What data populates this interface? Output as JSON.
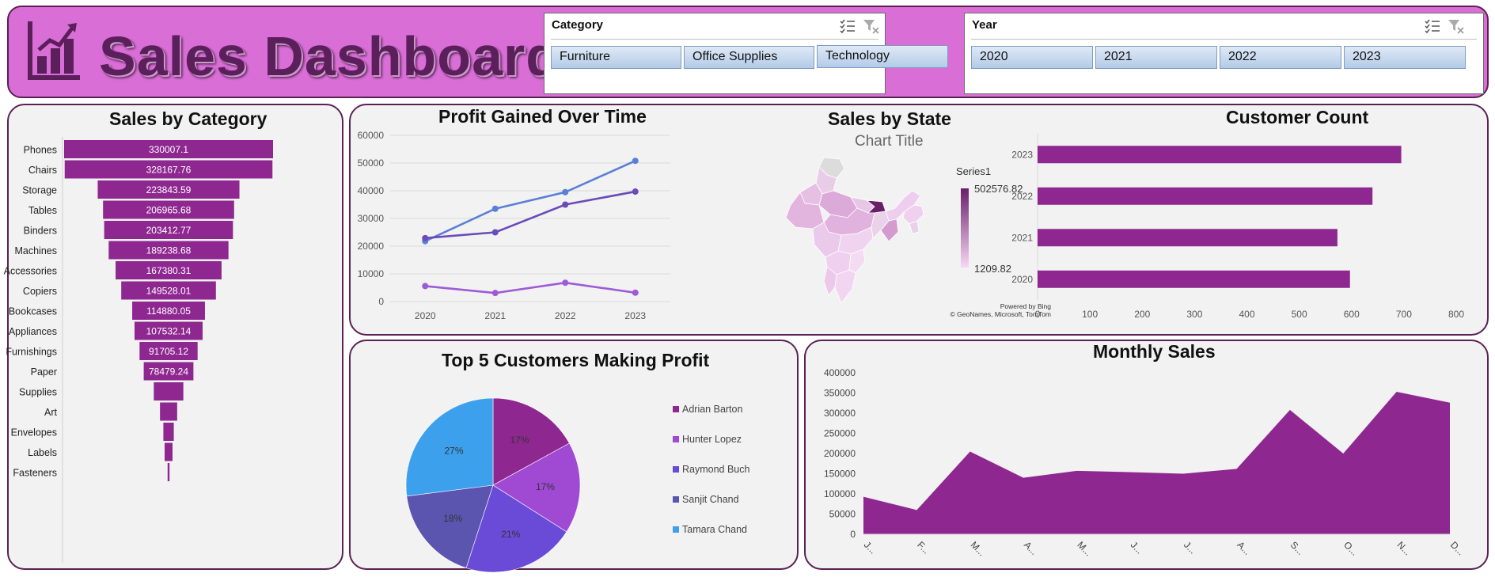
{
  "header": {
    "title": "Sales Dashboard",
    "icon": "bar-chart-icon",
    "colors": {
      "bg": "#d96fd6",
      "title": "#5b1f5c",
      "accent": "#8e2890"
    }
  },
  "slicers": {
    "category": {
      "label": "Category",
      "items": [
        "Furniture",
        "Office Supplies",
        "Technology"
      ],
      "icons": [
        "multi-select-icon",
        "clear-filter-icon"
      ]
    },
    "year": {
      "label": "Year",
      "items": [
        "2020",
        "2021",
        "2022",
        "2023"
      ],
      "icons": [
        "multi-select-icon",
        "clear-filter-icon"
      ]
    }
  },
  "panels": {
    "sales_by_category": "Sales by Category",
    "profit_over_time": "Profit Gained Over Time",
    "sales_by_state": "Sales by State",
    "customer_count": "Customer Count",
    "top_customers": "Top 5 Customers Making Profit",
    "monthly_sales": "Monthly Sales"
  },
  "map": {
    "chart_title": "Chart Title",
    "legend_title": "Series1",
    "legend_max": "502576.82",
    "legend_min": "1209.82",
    "credit_line1": "Powered by Bing",
    "credit_line2": "© GeoNames, Microsoft, TomTom"
  },
  "chart_data": [
    {
      "id": "sales_by_category",
      "type": "bar",
      "orientation": "horizontal-funnel",
      "title": "Sales by Category",
      "categories": [
        "Phones",
        "Chairs",
        "Storage",
        "Tables",
        "Binders",
        "Machines",
        "Accessories",
        "Copiers",
        "Bookcases",
        "Appliances",
        "Furnishings",
        "Paper",
        "Supplies",
        "Art",
        "Envelopes",
        "Labels",
        "Fasteners"
      ],
      "values": [
        330007.1,
        328167.76,
        223843.59,
        206965.68,
        203412.77,
        189238.68,
        167380.31,
        149528.01,
        114880.05,
        107532.14,
        91705.12,
        78479.24,
        46673.5,
        27118.8,
        16476.4,
        12486.3,
        3024.3
      ],
      "data_labels": [
        "330007.1",
        "328167.76",
        "223843.59",
        "206965.68",
        "203412.77",
        "189238.68",
        "167380.31",
        "149528.01",
        "114880.05",
        "107532.14",
        "91705.12",
        "78479.24",
        "",
        "",
        "",
        "",
        ""
      ],
      "color": "#8e2890"
    },
    {
      "id": "profit_over_time",
      "type": "line",
      "title": "Profit Gained Over Time",
      "categories": [
        "2020",
        "2021",
        "2022",
        "2023"
      ],
      "ylim": [
        0,
        60000
      ],
      "yticks": [
        0,
        10000,
        20000,
        30000,
        40000,
        50000,
        60000
      ],
      "grid": true,
      "series": [
        {
          "values": [
            21800,
            33500,
            39500,
            50800
          ],
          "color": "#5b7fd6"
        },
        {
          "values": [
            22900,
            25000,
            35000,
            39700
          ],
          "color": "#6a4bb8"
        },
        {
          "values": [
            5600,
            3100,
            6800,
            3200
          ],
          "color": "#9d5bd8"
        }
      ]
    },
    {
      "id": "customer_count",
      "type": "bar",
      "orientation": "horizontal",
      "title": "Customer Count",
      "categories": [
        "2023",
        "2022",
        "2021",
        "2020"
      ],
      "values": [
        695,
        640,
        573,
        597
      ],
      "xlim": [
        0,
        800
      ],
      "xticks": [
        0,
        100,
        200,
        300,
        400,
        500,
        600,
        700,
        800
      ],
      "color": "#8e2890"
    },
    {
      "id": "top_customers",
      "type": "pie",
      "title": "Top 5 Customers Making Profit",
      "labels": [
        "Adrian Barton",
        "Hunter Lopez",
        "Raymond Buch",
        "Sanjit Chand",
        "Tamara Chand"
      ],
      "values": [
        17,
        17,
        21,
        18,
        27
      ],
      "data_labels": [
        "17%",
        "17%",
        "21%",
        "18%",
        "27%"
      ],
      "colors": [
        "#8e2890",
        "#a04ad4",
        "#6a4bd8",
        "#5b55b0",
        "#3da0ec"
      ],
      "legend": "right"
    },
    {
      "id": "monthly_sales",
      "type": "area",
      "title": "Monthly Sales",
      "categories": [
        "J...",
        "F...",
        "M...",
        "A...",
        "M...",
        "J...",
        "J...",
        "A...",
        "S...",
        "O...",
        "N...",
        "D..."
      ],
      "values": [
        93000,
        60000,
        205000,
        140000,
        157000,
        154000,
        150000,
        162000,
        308000,
        200000,
        353000,
        326000
      ],
      "ylim": [
        0,
        400000
      ],
      "yticks": [
        0,
        50000,
        100000,
        150000,
        200000,
        250000,
        300000,
        350000,
        400000
      ],
      "color": "#8e2890"
    }
  ]
}
